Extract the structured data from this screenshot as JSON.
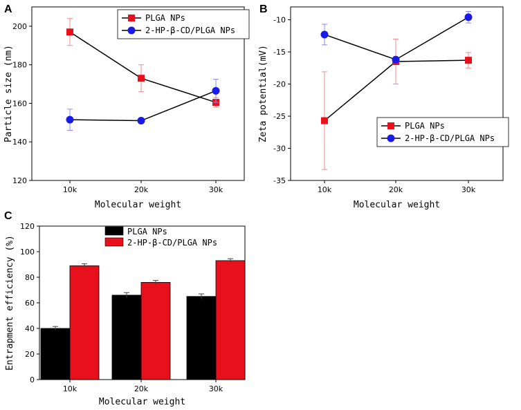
{
  "colors": {
    "series1": "#e8101c",
    "series2": "#1a1ae6",
    "bar1": "#000000",
    "bar2": "#e8101c",
    "err1": "#f08a8a",
    "err2": "#8a8af0"
  },
  "chart_data": [
    {
      "id": "A",
      "panel_label": "A",
      "type": "line",
      "categories": [
        "10k",
        "20k",
        "30k"
      ],
      "xlabel": "Molecular weight",
      "ylabel": "Particle size (nm)",
      "ylim": [
        120,
        210
      ],
      "yticks": [
        "120",
        "140",
        "160",
        "180",
        "200"
      ],
      "ytick_values": [
        120,
        140,
        160,
        180,
        200
      ],
      "legend_position": "top-right",
      "series": [
        {
          "name": "PLGA NPs",
          "marker": "square",
          "color": "#e8101c",
          "values": [
            197,
            173,
            160.5
          ],
          "errors": [
            7,
            7,
            2.5
          ]
        },
        {
          "name": "2-HP-β-CD/PLGA NPs",
          "marker": "circle",
          "color": "#1a1ae6",
          "values": [
            151.5,
            151,
            166.5
          ],
          "errors": [
            5.5,
            0.5,
            6
          ]
        }
      ]
    },
    {
      "id": "B",
      "panel_label": "B",
      "type": "line",
      "categories": [
        "10k",
        "20k",
        "30k"
      ],
      "xlabel": "Molecular weight",
      "ylabel": "Zeta potential(mV)",
      "ylim": [
        -35,
        -8
      ],
      "yticks": [
        "-35",
        "-30",
        "-25",
        "-20",
        "-15",
        "-10"
      ],
      "ytick_values": [
        -35,
        -30,
        -25,
        -20,
        -15,
        -10
      ],
      "legend_position": "middle-right",
      "series": [
        {
          "name": "PLGA NPs",
          "marker": "square",
          "color": "#e8101c",
          "values": [
            -25.7,
            -16.5,
            -16.3
          ],
          "errors": [
            7.6,
            3.5,
            1.2
          ]
        },
        {
          "name": "2-HP-β-CD/PLGA NPs",
          "marker": "circle",
          "color": "#1a1ae6",
          "values": [
            -12.3,
            -16.2,
            -9.6
          ],
          "errors": [
            1.6,
            0.4,
            0.9
          ]
        }
      ]
    },
    {
      "id": "C",
      "panel_label": "C",
      "type": "bar",
      "categories": [
        "10k",
        "20k",
        "30k"
      ],
      "xlabel": "Molecular weight",
      "ylabel": "Entrapment efficiency (%)",
      "ylim": [
        0,
        120
      ],
      "yticks": [
        "0",
        "20",
        "40",
        "60",
        "80",
        "100",
        "120"
      ],
      "ytick_values": [
        0,
        20,
        40,
        60,
        80,
        100,
        120
      ],
      "legend_position": "top-left",
      "series": [
        {
          "name": "PLGA NPs",
          "color": "#000000",
          "values": [
            40,
            66,
            65
          ],
          "errors": [
            1.5,
            2,
            2
          ]
        },
        {
          "name": "2-HP-β-CD/PLGA NPs",
          "color": "#e8101c",
          "values": [
            89,
            76,
            93
          ],
          "errors": [
            1.5,
            1.5,
            1.5
          ]
        }
      ]
    }
  ]
}
